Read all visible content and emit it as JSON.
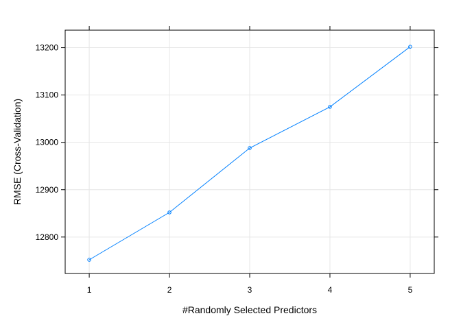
{
  "chart_data": {
    "type": "line",
    "title": "",
    "xlabel": "#Randomly Selected Predictors",
    "ylabel": "RMSE (Cross-Validation)",
    "x": [
      1,
      2,
      3,
      4,
      5
    ],
    "xticks": [
      "1",
      "2",
      "3",
      "4",
      "5"
    ],
    "yticks": [
      12800,
      12900,
      13000,
      13100,
      13200
    ],
    "xlim": [
      0.7,
      5.3
    ],
    "ylim": [
      12723,
      13237
    ],
    "grid": true,
    "series": [
      {
        "values": [
          12752,
          12852,
          12988,
          13075,
          13202
        ],
        "color": "#0080ff",
        "marker": "circle-open"
      }
    ]
  }
}
